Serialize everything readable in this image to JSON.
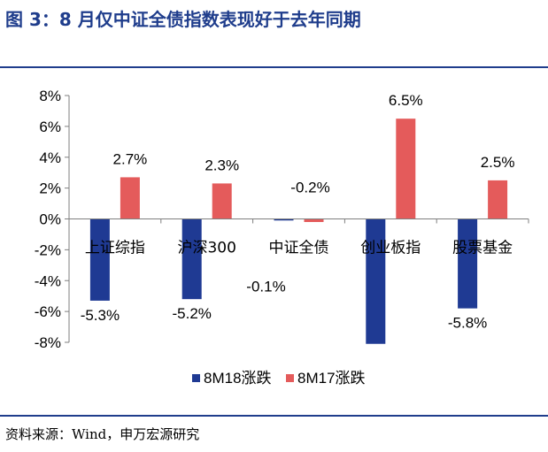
{
  "header": {
    "title": "图 3：8 月仅中证全债指数表现好于去年同期"
  },
  "footer": {
    "source": "资料来源：Wind，申万宏源研究"
  },
  "chart_data": {
    "type": "bar",
    "categories": [
      "上证综指",
      "沪深300",
      "中证全债",
      "创业板指",
      "股票基金"
    ],
    "series": [
      {
        "name": "8M18涨跌",
        "values": [
          -5.3,
          -5.2,
          -0.1,
          -8.1,
          -5.8
        ],
        "labels": [
          "-5.3%",
          "-5.2%",
          "-0.1%",
          "",
          "-5.8%"
        ],
        "color": "#1f3a93"
      },
      {
        "name": "8M17涨跌",
        "values": [
          2.7,
          2.3,
          -0.2,
          6.5,
          2.5
        ],
        "labels": [
          "2.7%",
          "2.3%",
          "-0.2%",
          "6.5%",
          "2.5%"
        ],
        "color": "#e45b5b"
      }
    ],
    "ylim": [
      -8,
      8
    ],
    "yticks": [
      "-8%",
      "-6%",
      "-4%",
      "-2%",
      "0%",
      "2%",
      "4%",
      "6%",
      "8%"
    ],
    "legend_position": "bottom",
    "grid": false
  }
}
